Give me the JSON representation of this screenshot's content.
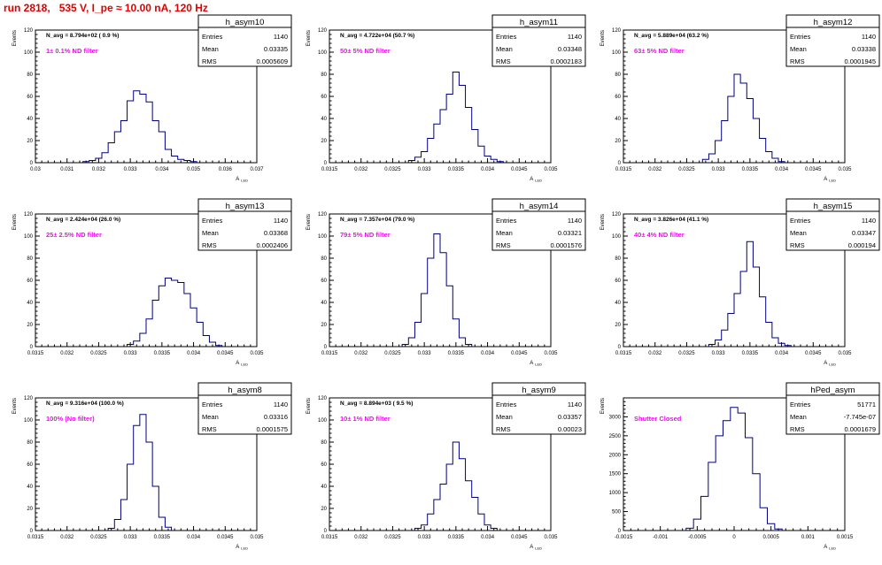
{
  "page_title": "run 2818,   535 V, I_pe ≈ 10.00 nA, 120 Hz",
  "stats_labels": {
    "entries": "Entries",
    "mean": "Mean",
    "rms": "RMS"
  },
  "colors": {
    "title": "#e00000",
    "note": "#ff00ff",
    "hist": "#000080",
    "axis": "#000000"
  },
  "chart_data": [
    {
      "type": "histogram",
      "name": "h_asym10",
      "navg": "N_avg = 8.794e+02 ( 0.9 %)",
      "note": "1± 0.1% ND filter",
      "entries": "1140",
      "mean": "0.03335",
      "rms": "0.0005609",
      "xlim": [
        0.03,
        0.037
      ],
      "ylim": [
        0,
        120
      ],
      "xticks": [
        "0.03",
        "0.031",
        "0.032",
        "0.033",
        "0.034",
        "0.035",
        "0.036",
        "0.037"
      ],
      "yticks": [
        "0",
        "20",
        "40",
        "60",
        "80",
        "100",
        "120"
      ],
      "xlabel": "A_{LED}",
      "ylabel": "Events",
      "x": [
        0.0316,
        0.0318,
        0.032,
        0.0322,
        0.0324,
        0.0326,
        0.0328,
        0.033,
        0.0332,
        0.0334,
        0.0336,
        0.0338,
        0.034,
        0.0342,
        0.0344,
        0.0346,
        0.0348,
        0.035
      ],
      "values": [
        1,
        2,
        4,
        9,
        18,
        28,
        38,
        56,
        65,
        62,
        55,
        38,
        28,
        12,
        6,
        3,
        2,
        1
      ]
    },
    {
      "type": "histogram",
      "name": "h_asym11",
      "navg": "N_avg = 4.722e+04 (50.7 %)",
      "note": "50± 5% ND filter",
      "entries": "1140",
      "mean": "0.03348",
      "rms": "0.0002183",
      "xlim": [
        0.0315,
        0.035
      ],
      "ylim": [
        0,
        120
      ],
      "xticks": [
        "0.0315",
        "0.032",
        "0.0325",
        "0.033",
        "0.0335",
        "0.034",
        "0.0345",
        "0.035"
      ],
      "yticks": [
        "0",
        "20",
        "40",
        "60",
        "80",
        "100",
        "120"
      ],
      "xlabel": "A_{LED}",
      "ylabel": "Events",
      "x": [
        0.0328,
        0.0329,
        0.033,
        0.0331,
        0.0332,
        0.0333,
        0.0334,
        0.0335,
        0.0336,
        0.0337,
        0.0338,
        0.0339,
        0.034,
        0.0341,
        0.0342
      ],
      "values": [
        2,
        5,
        10,
        22,
        35,
        48,
        62,
        82,
        70,
        50,
        30,
        15,
        6,
        3,
        1
      ]
    },
    {
      "type": "histogram",
      "name": "h_asym12",
      "navg": "N_avg = 5.889e+04 (63.2 %)",
      "note": "63± 5% ND filter",
      "entries": "1140",
      "mean": "0.03338",
      "rms": "0.0001945",
      "xlim": [
        0.0315,
        0.035
      ],
      "ylim": [
        0,
        120
      ],
      "xticks": [
        "0.0315",
        "0.032",
        "0.0325",
        "0.033",
        "0.0335",
        "0.034",
        "0.0345",
        "0.035"
      ],
      "yticks": [
        "0",
        "20",
        "40",
        "60",
        "80",
        "100",
        "120"
      ],
      "xlabel": "A_{LED}",
      "ylabel": "Events",
      "x": [
        0.0328,
        0.0329,
        0.033,
        0.0331,
        0.0332,
        0.0333,
        0.0334,
        0.0335,
        0.0336,
        0.0337,
        0.0338,
        0.0339,
        0.034
      ],
      "values": [
        3,
        8,
        20,
        38,
        60,
        80,
        72,
        58,
        40,
        22,
        10,
        4,
        1
      ]
    },
    {
      "type": "histogram",
      "name": "h_asym13",
      "navg": "N_avg = 2.424e+04 (26.0 %)",
      "note": "25± 2.5% ND filter",
      "entries": "1140",
      "mean": "0.03368",
      "rms": "0.0002406",
      "xlim": [
        0.0315,
        0.035
      ],
      "ylim": [
        0,
        120
      ],
      "xticks": [
        "0.0315",
        "0.032",
        "0.0325",
        "0.033",
        "0.0335",
        "0.034",
        "0.0345",
        "0.035"
      ],
      "yticks": [
        "0",
        "20",
        "40",
        "60",
        "80",
        "100",
        "120"
      ],
      "xlabel": "A_{LED}",
      "ylabel": "Events",
      "x": [
        0.033,
        0.0331,
        0.0332,
        0.0333,
        0.0334,
        0.0335,
        0.0336,
        0.0337,
        0.0338,
        0.0339,
        0.034,
        0.0341,
        0.0342,
        0.0343,
        0.0344
      ],
      "values": [
        2,
        5,
        12,
        25,
        42,
        55,
        62,
        60,
        58,
        48,
        35,
        22,
        10,
        4,
        1
      ]
    },
    {
      "type": "histogram",
      "name": "h_asym14",
      "navg": "N_avg = 7.357e+04 (79.0 %)",
      "note": "79± 5% ND filter",
      "entries": "1140",
      "mean": "0.03321",
      "rms": "0.0001576",
      "xlim": [
        0.0315,
        0.035
      ],
      "ylim": [
        0,
        120
      ],
      "xticks": [
        "0.0315",
        "0.032",
        "0.0325",
        "0.033",
        "0.0335",
        "0.034",
        "0.0345",
        "0.035"
      ],
      "yticks": [
        "0",
        "20",
        "40",
        "60",
        "80",
        "100",
        "120"
      ],
      "xlabel": "A_{LED}",
      "ylabel": "Events",
      "x": [
        0.0327,
        0.0328,
        0.0329,
        0.033,
        0.0331,
        0.0332,
        0.0333,
        0.0334,
        0.0335,
        0.0336,
        0.0337
      ],
      "values": [
        2,
        8,
        22,
        48,
        80,
        102,
        85,
        55,
        25,
        8,
        2
      ]
    },
    {
      "type": "histogram",
      "name": "h_asym15",
      "navg": "N_avg = 3.826e+04 (41.1 %)",
      "note": "40± 4% ND filter",
      "entries": "1140",
      "mean": "0.03347",
      "rms": "0.000194",
      "xlim": [
        0.0315,
        0.035
      ],
      "ylim": [
        0,
        120
      ],
      "xticks": [
        "0.0315",
        "0.032",
        "0.0325",
        "0.033",
        "0.0335",
        "0.034",
        "0.0345",
        "0.035"
      ],
      "yticks": [
        "0",
        "20",
        "40",
        "60",
        "80",
        "100",
        "120"
      ],
      "xlabel": "A_{LED}",
      "ylabel": "Events",
      "x": [
        0.0329,
        0.033,
        0.0331,
        0.0332,
        0.0333,
        0.0334,
        0.0335,
        0.0336,
        0.0337,
        0.0338,
        0.0339,
        0.034,
        0.0341
      ],
      "values": [
        2,
        6,
        15,
        30,
        48,
        68,
        95,
        72,
        45,
        22,
        8,
        3,
        1
      ]
    },
    {
      "type": "histogram",
      "name": "h_asym8",
      "navg": "N_avg = 9.316e+04 (100.0 %)",
      "note": "100% (No filter)",
      "entries": "1140",
      "mean": "0.03316",
      "rms": "0.0001575",
      "xlim": [
        0.0315,
        0.035
      ],
      "ylim": [
        0,
        120
      ],
      "xticks": [
        "0.0315",
        "0.032",
        "0.0325",
        "0.033",
        "0.0335",
        "0.034",
        "0.0345",
        "0.035"
      ],
      "yticks": [
        "0",
        "20",
        "40",
        "60",
        "80",
        "100",
        "120"
      ],
      "xlabel": "A_{LED}",
      "ylabel": "Events",
      "x": [
        0.0327,
        0.0328,
        0.0329,
        0.033,
        0.0331,
        0.0332,
        0.0333,
        0.0334,
        0.0335,
        0.0336
      ],
      "values": [
        2,
        10,
        28,
        60,
        95,
        105,
        80,
        40,
        12,
        3
      ]
    },
    {
      "type": "histogram",
      "name": "h_asym9",
      "navg": "N_avg = 8.894e+03 ( 9.5 %)",
      "note": "10± 1% ND filter",
      "entries": "1140",
      "mean": "0.03357",
      "rms": "0.00023",
      "xlim": [
        0.0315,
        0.035
      ],
      "ylim": [
        0,
        120
      ],
      "xticks": [
        "0.0315",
        "0.032",
        "0.0325",
        "0.033",
        "0.0335",
        "0.034",
        "0.0345",
        "0.035"
      ],
      "yticks": [
        "0",
        "20",
        "40",
        "60",
        "80",
        "100",
        "120"
      ],
      "xlabel": "A_{LED}",
      "ylabel": "Events",
      "x": [
        0.0329,
        0.033,
        0.0331,
        0.0332,
        0.0333,
        0.0334,
        0.0335,
        0.0336,
        0.0337,
        0.0338,
        0.0339,
        0.034,
        0.0341
      ],
      "values": [
        2,
        5,
        15,
        28,
        42,
        60,
        80,
        65,
        45,
        30,
        15,
        5,
        2
      ]
    },
    {
      "type": "histogram",
      "name": "hPed_asym",
      "navg": "",
      "note": "Shutter Closed",
      "entries": "51771",
      "mean": "-7.745e-07",
      "rms": "0.0001679",
      "xlim": [
        -0.0015,
        0.0015
      ],
      "ylim": [
        0,
        3500
      ],
      "xticks": [
        "-0.0015",
        "-0.001",
        "-0.0005",
        "0",
        "0.0005",
        "0.001",
        "0.0015"
      ],
      "yticks": [
        "0",
        "500",
        "1000",
        "1500",
        "2000",
        "2500",
        "3000"
      ],
      "xlabel": "A_{LED}",
      "ylabel": "Events",
      "x": [
        -0.0006,
        -0.0005,
        -0.0004,
        -0.0003,
        -0.0002,
        -0.0001,
        0.0,
        0.0001,
        0.0002,
        0.0003,
        0.0004,
        0.0005,
        0.0006
      ],
      "values": [
        60,
        300,
        900,
        1800,
        2500,
        2900,
        3250,
        3100,
        2450,
        1500,
        600,
        180,
        40
      ]
    }
  ]
}
